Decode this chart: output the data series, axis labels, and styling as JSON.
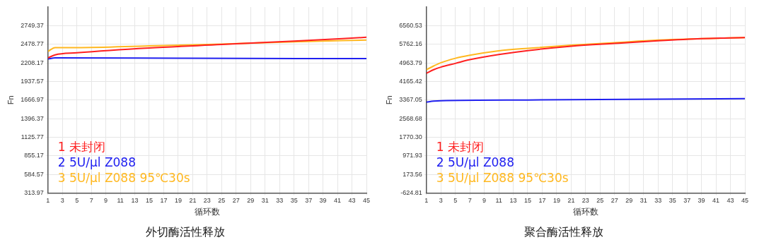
{
  "chart_data": [
    {
      "type": "line",
      "title": "外切酶活性释放",
      "xlabel": "循环数",
      "ylabel": "Fn",
      "xlim": [
        1,
        45
      ],
      "xticks": [
        1,
        3,
        5,
        7,
        9,
        11,
        13,
        15,
        17,
        19,
        21,
        23,
        25,
        27,
        29,
        31,
        33,
        35,
        37,
        39,
        41,
        43,
        45
      ],
      "ylim": [
        313.97,
        3019.97
      ],
      "yticks": [
        313.97,
        584.57,
        855.17,
        1125.77,
        1396.37,
        1666.97,
        1937.57,
        2208.17,
        2478.77,
        2749.37
      ],
      "grid": true,
      "legend": "bottom left",
      "marker": "none",
      "line_style": "solid",
      "series": [
        {
          "name": "1 未封闭",
          "color": "#ff2020",
          "x": [
            1,
            2,
            5,
            15,
            25,
            35,
            45
          ],
          "values": [
            2280,
            2325,
            2355,
            2425,
            2475,
            2525,
            2580
          ]
        },
        {
          "name": "2 5U/µl Z088",
          "color": "#2020f0",
          "x": [
            1,
            2,
            20,
            45
          ],
          "values": [
            2265,
            2280,
            2275,
            2270
          ]
        },
        {
          "name": "3 5U/µl Z088 95℃30s",
          "color": "#ffb820",
          "x": [
            1,
            2,
            5,
            15,
            25,
            35,
            45
          ],
          "values": [
            2375,
            2430,
            2430,
            2455,
            2480,
            2515,
            2540
          ]
        }
      ]
    },
    {
      "type": "line",
      "title": "聚合酶活性释放",
      "xlabel": "循环数",
      "ylabel": "Fn",
      "xlim": [
        1,
        45
      ],
      "xticks": [
        1,
        3,
        5,
        7,
        9,
        11,
        13,
        15,
        17,
        19,
        21,
        23,
        25,
        27,
        29,
        31,
        33,
        35,
        37,
        39,
        41,
        43,
        45
      ],
      "ylim": [
        -624.81,
        7358.9
      ],
      "yticks": [
        -624.81,
        173.56,
        971.93,
        {
          "value": 1770.3,
          "label": "1770.30"
        },
        2568.68,
        3367.05,
        4165.42,
        4963.79,
        5762.16,
        6560.53
      ],
      "grid": true,
      "legend": "bottom left",
      "marker": "none",
      "line_style": "solid",
      "series": [
        {
          "name": "1 未封闭",
          "color": "#ff2020",
          "x": [
            1,
            2,
            3,
            5,
            7,
            11,
            15,
            21,
            27,
            33,
            39,
            45
          ],
          "values": [
            4520,
            4670,
            4780,
            4940,
            5100,
            5320,
            5490,
            5680,
            5800,
            5910,
            6000,
            6050
          ]
        },
        {
          "name": "2 5U/µl Z088",
          "color": "#2020f0",
          "x": [
            1,
            2,
            3,
            15,
            45
          ],
          "values": [
            3280,
            3320,
            3340,
            3370,
            3430
          ]
        },
        {
          "name": "3 5U/µl Z088 95℃30s",
          "color": "#ffb820",
          "x": [
            1,
            2,
            3,
            5,
            7,
            11,
            15,
            21,
            27,
            33,
            39,
            45
          ],
          "values": [
            4670,
            4830,
            4970,
            5160,
            5290,
            5480,
            5590,
            5720,
            5830,
            5940,
            6000,
            6050
          ]
        }
      ]
    }
  ]
}
